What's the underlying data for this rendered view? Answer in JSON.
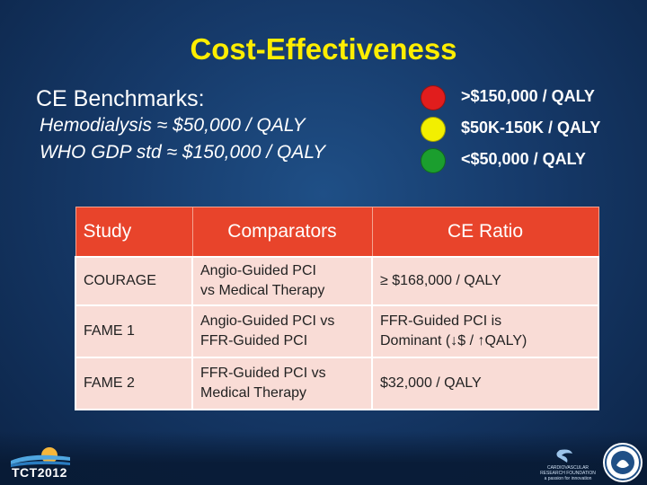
{
  "title": "Cost-Effectiveness",
  "benchmarks": {
    "heading": "CE Benchmarks:",
    "lines": [
      "Hemodialysis ≈ $50,000 / QALY",
      "WHO GDP std ≈ $150,000 / QALY"
    ]
  },
  "legend": [
    {
      "label": ">$150,000 / QALY",
      "color": "#e11d1d"
    },
    {
      "label": "$50K-150K / QALY",
      "color": "#f2ef00"
    },
    {
      "label": "<$50,000 / QALY",
      "color": "#1b9e2e"
    }
  ],
  "table": {
    "headers": [
      "Study",
      "Comparators",
      "CE Ratio"
    ],
    "rows": [
      {
        "study": "COURAGE",
        "comparators_1": "Angio-Guided PCI",
        "comparators_2": "vs Medical Therapy",
        "ratio_1": "≥ $168,000 / QALY",
        "ratio_2": ""
      },
      {
        "study": "FAME 1",
        "comparators_1": "Angio-Guided PCI vs",
        "comparators_2": "FFR-Guided PCI",
        "ratio_1": "FFR-Guided PCI is",
        "ratio_2": "Dominant (↓$ / ↑QALY)"
      },
      {
        "study": "FAME 2",
        "comparators_1": "FFR-Guided PCI vs",
        "comparators_2": "Medical Therapy",
        "ratio_1": "$32,000 / QALY",
        "ratio_2": ""
      }
    ]
  },
  "footer": {
    "left_logo_text": "TCT2012",
    "right_logo_text_1": "CARDIOVASCULAR",
    "right_logo_text_2": "RESEARCH FOUNDATION",
    "right_logo_text_3": "a passion for innovation"
  }
}
